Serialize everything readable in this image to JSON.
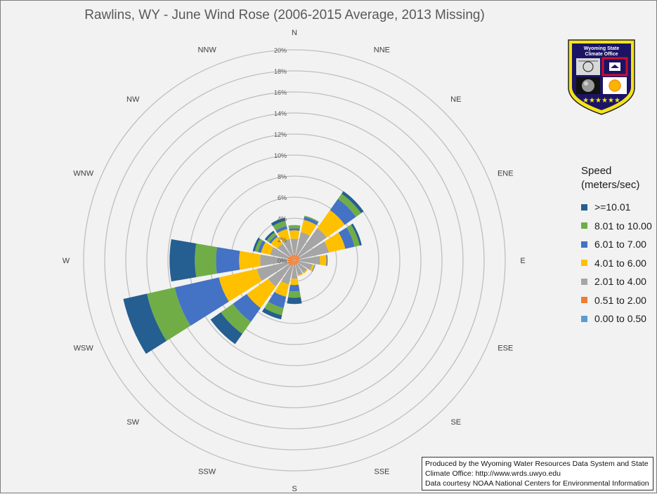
{
  "chart_data": {
    "type": "polar-stacked-bar",
    "title": "Rawlins, WY - June Wind Rose (2006-2015 Average, 2013 Missing)",
    "directions": [
      "N",
      "NNE",
      "NE",
      "ENE",
      "E",
      "ESE",
      "SE",
      "SSE",
      "S",
      "SSW",
      "SW",
      "WSW",
      "W",
      "WNW",
      "NW",
      "NNW"
    ],
    "radial_ticks": [
      "0%",
      "2%",
      "4%",
      "6%",
      "8%",
      "10%",
      "12%",
      "14%",
      "16%",
      "18%",
      "20%"
    ],
    "radial_max": 20,
    "radial_unit": "%",
    "legend_title": [
      "Speed",
      "(meters/sec)"
    ],
    "series": [
      {
        "name": "0.00 to 0.50",
        "color": "#5b9bd5",
        "values": [
          0.05,
          0.05,
          0.05,
          0.05,
          0.05,
          0.05,
          0.05,
          0.05,
          0.05,
          0.05,
          0.05,
          0.05,
          0.05,
          0.05,
          0.05,
          0.05
        ]
      },
      {
        "name": "0.51 to 2.00",
        "color": "#ed7d31",
        "values": [
          0.5,
          0.5,
          0.5,
          0.5,
          0.4,
          0.4,
          0.4,
          0.4,
          0.4,
          0.5,
          0.6,
          0.6,
          0.6,
          0.6,
          0.5,
          0.5
        ]
      },
      {
        "name": "2.01 to 4.00",
        "color": "#a5a5a5",
        "values": [
          1.5,
          2.2,
          3.2,
          2.8,
          2.0,
          1.3,
          1.0,
          1.0,
          1.3,
          1.8,
          2.4,
          3.0,
          2.6,
          1.7,
          1.4,
          1.5
        ]
      },
      {
        "name": "4.01 to 6.00",
        "color": "#ffc000",
        "values": [
          0.8,
          1.2,
          2.1,
          1.6,
          0.6,
          0.2,
          0.1,
          0.1,
          0.6,
          1.2,
          2.5,
          3.7,
          2.0,
          0.9,
          0.8,
          1.0
        ]
      },
      {
        "name": "6.01 to 7.00",
        "color": "#4472c4",
        "values": [
          0.2,
          0.3,
          1.3,
          0.9,
          0.1,
          0.05,
          0.0,
          0.0,
          0.6,
          1.1,
          1.6,
          4.3,
          2.2,
          0.3,
          0.2,
          0.3
        ]
      },
      {
        "name": "8.01 to 10.00",
        "color": "#70ad47",
        "values": [
          0.3,
          0.1,
          0.6,
          0.5,
          0.0,
          0.0,
          0.0,
          0.0,
          0.6,
          0.7,
          1.4,
          2.7,
          2.0,
          0.3,
          0.3,
          0.5
        ]
      },
      {
        "name": ">=10.01",
        "color": "#255e91",
        "values": [
          0.0,
          0.0,
          0.3,
          0.2,
          0.0,
          0.0,
          0.0,
          0.0,
          0.6,
          0.4,
          1.2,
          2.3,
          2.4,
          0.2,
          0.2,
          0.3
        ]
      }
    ]
  },
  "legend_order": [
    ">=10.01",
    "8.01 to 10.00",
    "6.01 to 7.00",
    "4.01 to 6.00",
    "2.01 to 4.00",
    "0.51 to 2.00",
    "0.00 to 0.50"
  ],
  "credits": {
    "line1": "Produced by the Wyoming Water Resources Data System and State",
    "line2": "Climate Office: http://www.wrds.uwyo.edu",
    "line3": "Data courtesy NOAA National Centers for Environmental Information"
  },
  "logo": {
    "text_line1": "Wyoming State",
    "text_line2": "Climate Office",
    "stars": "★★★★★★",
    "colors": {
      "shield": "#1b1464",
      "rim": "#f5e31a",
      "flag_red": "#c8102e"
    }
  }
}
